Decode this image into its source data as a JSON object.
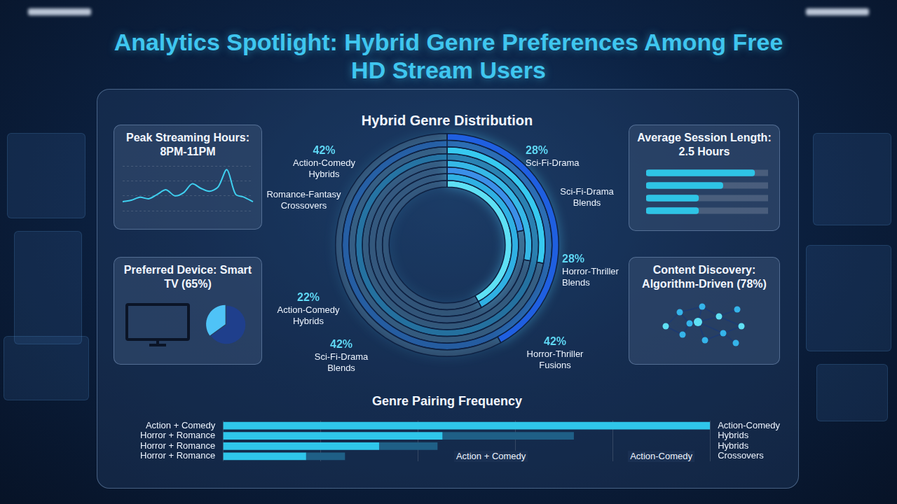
{
  "title": "Analytics Spotlight: Hybrid Genre Preferences Among Free HD Stream Users",
  "chart_data": [
    {
      "type": "line",
      "title": "Peak Streaming Hours: 8PM-11PM",
      "categories": [
        null,
        null,
        null,
        null,
        null,
        null,
        null,
        null,
        null,
        null,
        null,
        null,
        null,
        null,
        null,
        null
      ],
      "values": [
        12,
        14,
        18,
        16,
        22,
        28,
        20,
        24,
        36,
        30,
        26,
        32,
        55,
        22,
        18,
        12
      ],
      "color": "#3fd0f0",
      "ylim": [
        0,
        60
      ],
      "yticks": [
        0,
        20,
        40,
        60
      ],
      "grid": true,
      "tick_labels": false
    },
    {
      "type": "pie",
      "title": "Preferred Device: Smart TV (65%)",
      "values": [
        65,
        35
      ],
      "colors": [
        "#1f3f8c",
        "#4fc3f7"
      ]
    },
    {
      "type": "doughnut",
      "title": "Hybrid Genre Distribution",
      "categories": [
        "Action-Comedy Hybrids",
        "Romance-Fantasy Crossovers",
        "Sci-Fi-Drama",
        "Sci-Fi-Drama Blends",
        "Horror-Thriller Blends",
        "Action-Comedy Hybrids",
        "Sci-Fi-Drama Blends",
        "Horror-Thriller Fusions"
      ],
      "values": [
        42,
        null,
        28,
        null,
        28,
        22,
        42,
        42
      ],
      "value_labels": [
        "42%",
        null,
        "28%",
        null,
        "28%",
        "22%",
        "42%",
        "42%"
      ],
      "colors": [
        "#1f5fe0",
        "#2d79e8",
        "#37c9ef",
        "#2aa8e0",
        "#36b8e6",
        "#3b8fe8",
        "#2fb0e3",
        "#5ee0f4"
      ],
      "data_labels": true
    },
    {
      "type": "bar",
      "orientation": "horizontal",
      "title": "Average Session Length: 2.5 Hours",
      "categories": [
        null,
        null,
        null,
        null
      ],
      "values": [
        89,
        63,
        43,
        43
      ],
      "color": "#2ec4e6",
      "xlim": [
        0,
        100
      ],
      "xticks": [
        0,
        100
      ],
      "grid": false,
      "tick_labels": false
    },
    {
      "type": "network",
      "title": "Content Discovery: Algorithm-Driven (78%)"
    },
    {
      "type": "bar",
      "orientation": "horizontal",
      "stacked": true,
      "title": "Genre Pairing Frequency",
      "categories": [
        "Action + Comedy",
        "Horror + Romance",
        "Horror + Romance",
        "Horror + Romance"
      ],
      "end_labels": [
        "Action-Comedy",
        "Hybrids",
        "Hybrids",
        "Crossovers"
      ],
      "series": [
        {
          "color": "#2fc6ea",
          "values": [
            100,
            45,
            32,
            17
          ]
        },
        {
          "color": "#1f5f86",
          "values": [
            null,
            27,
            12,
            8
          ]
        }
      ],
      "xlim": [
        0,
        100
      ],
      "xticks": [
        0,
        20,
        40,
        60,
        80,
        100
      ],
      "grid": true,
      "tick_labels": "y",
      "annotations": [
        "Action + Comedy",
        "Action-Comedy"
      ]
    }
  ]
}
